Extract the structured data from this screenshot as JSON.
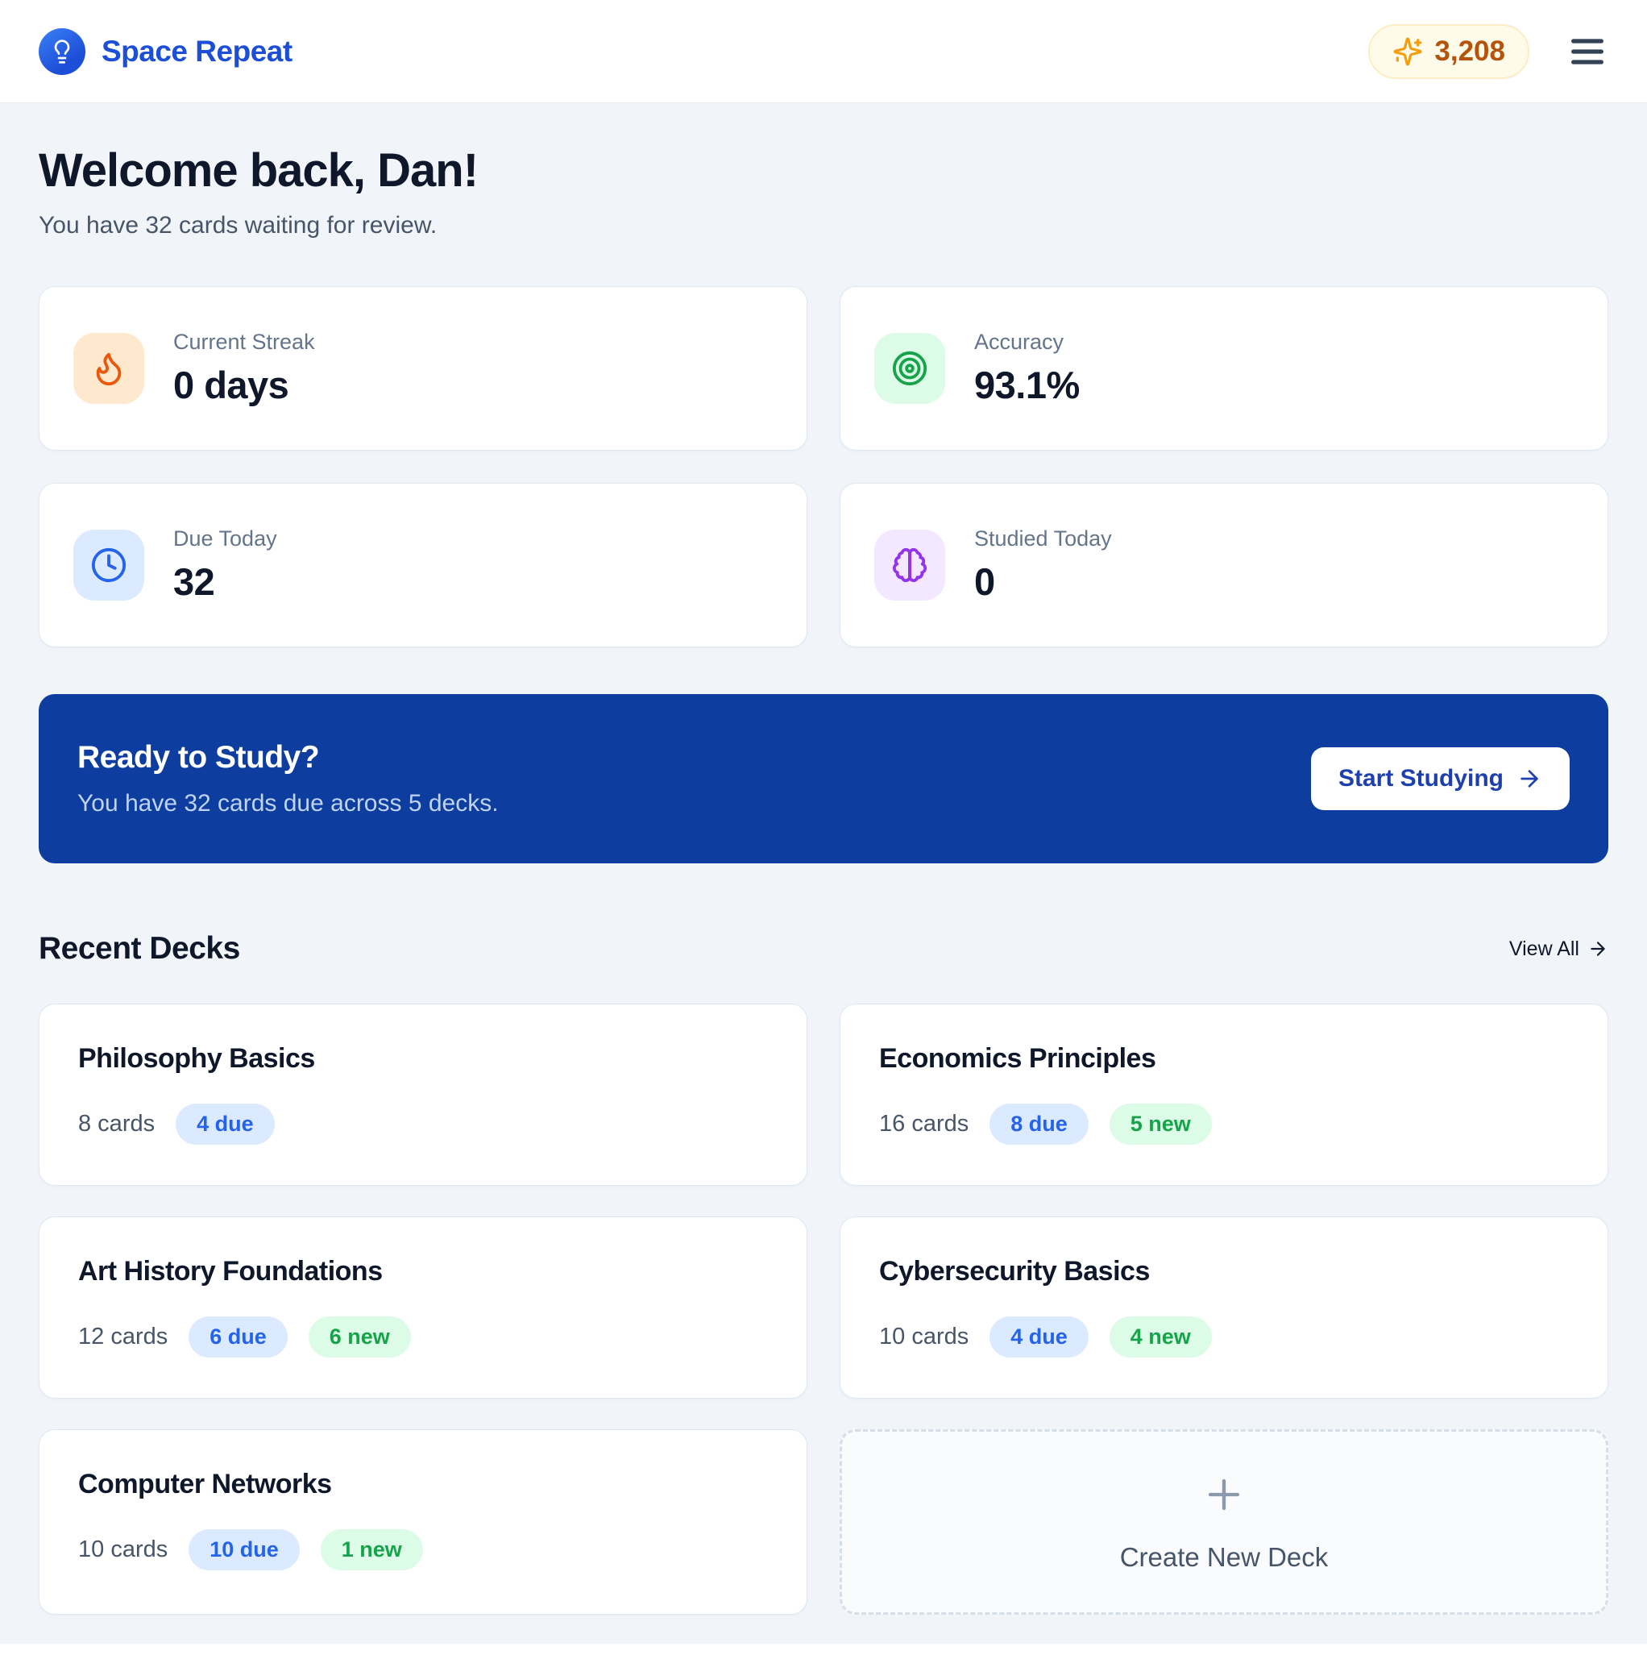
{
  "header": {
    "brand": "Space Repeat",
    "points": "3,208",
    "brand_color": "#1d4ed8",
    "points_color": "#b45309"
  },
  "welcome": {
    "title": "Welcome back, Dan!",
    "subtitle": "You have 32 cards waiting for review."
  },
  "stats": [
    {
      "label": "Current Streak",
      "value": "0 days",
      "icon": "flame-icon",
      "icon_color": "#ea580c",
      "icon_bg": "#fee9cf"
    },
    {
      "label": "Accuracy",
      "value": "93.1%",
      "icon": "target-icon",
      "icon_color": "#16a34a",
      "icon_bg": "#dcfce7"
    },
    {
      "label": "Due Today",
      "value": "32",
      "icon": "clock-icon",
      "icon_color": "#2563eb",
      "icon_bg": "#dbeafe"
    },
    {
      "label": "Studied Today",
      "value": "0",
      "icon": "brain-icon",
      "icon_color": "#9333ea",
      "icon_bg": "#f3e8ff"
    }
  ],
  "study_banner": {
    "title": "Ready to Study?",
    "subtitle": "You have 32 cards due across 5 decks.",
    "button_label": "Start Studying",
    "bg_color": "#0d3d9e"
  },
  "recent_decks": {
    "title": "Recent Decks",
    "view_all_label": "View All",
    "create_label": "Create New Deck",
    "decks": [
      {
        "name": "Philosophy Basics",
        "cards": "8 cards",
        "due": "4 due",
        "new": null
      },
      {
        "name": "Economics Principles",
        "cards": "16 cards",
        "due": "8 due",
        "new": "5 new"
      },
      {
        "name": "Art History Foundations",
        "cards": "12 cards",
        "due": "6 due",
        "new": "6 new"
      },
      {
        "name": "Cybersecurity Basics",
        "cards": "10 cards",
        "due": "4 due",
        "new": "4 new"
      },
      {
        "name": "Computer Networks",
        "cards": "10 cards",
        "due": "10 due",
        "new": "1 new"
      }
    ]
  }
}
